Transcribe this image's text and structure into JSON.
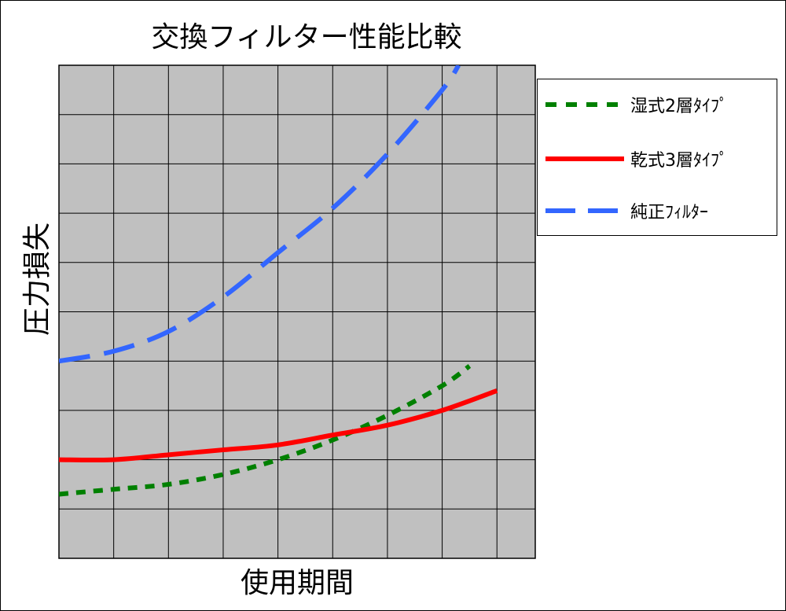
{
  "chart_data": {
    "type": "line",
    "title": "交換フィルター性能比較",
    "xlabel": "使用期間",
    "ylabel": "圧力損失",
    "x": [
      0,
      1,
      2,
      3,
      4,
      5,
      6,
      7,
      8
    ],
    "xlim": [
      0,
      8.7
    ],
    "ylim": [
      0,
      10
    ],
    "grid": true,
    "plot_background": "#c0c0c0",
    "legend_position": "right",
    "series": [
      {
        "name": "湿式2層ﾀｲﾌﾟ",
        "color": "#008000",
        "style": "dotted",
        "x": [
          0,
          1,
          2,
          3,
          4,
          5,
          6,
          7,
          7.5
        ],
        "values": [
          1.3,
          1.4,
          1.5,
          1.7,
          2.0,
          2.4,
          2.9,
          3.5,
          3.9
        ]
      },
      {
        "name": "乾式3層ﾀｲﾌﾟ",
        "color": "#ff0000",
        "style": "solid",
        "x": [
          0,
          1,
          2,
          3,
          4,
          5,
          6,
          7,
          8
        ],
        "values": [
          2.0,
          2.0,
          2.1,
          2.2,
          2.3,
          2.5,
          2.7,
          3.0,
          3.4
        ]
      },
      {
        "name": "純正ﾌｨﾙﾀｰ",
        "color": "#3366ff",
        "style": "dashed",
        "x": [
          0,
          1,
          2,
          3,
          4,
          5,
          6,
          7,
          7.3
        ],
        "values": [
          4.0,
          4.2,
          4.6,
          5.3,
          6.2,
          7.1,
          8.2,
          9.5,
          10.0
        ]
      }
    ]
  }
}
